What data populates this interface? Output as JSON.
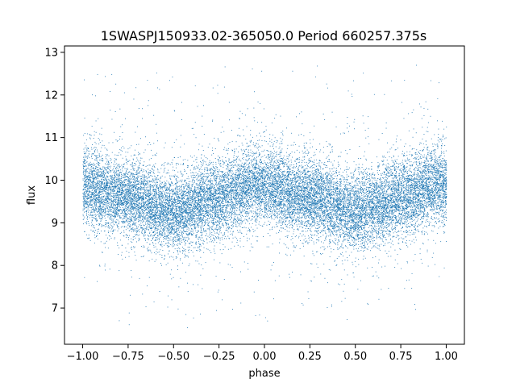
{
  "chart_data": {
    "type": "scatter",
    "title": "1SWASPJ150933.02-365050.0 Period 660257.375s",
    "xlabel": "phase",
    "ylabel": "flux",
    "xlim": [
      -1.1,
      1.1
    ],
    "ylim": [
      6.15,
      13.15
    ],
    "xticks": [
      -1.0,
      -0.75,
      -0.5,
      -0.25,
      0.0,
      0.25,
      0.5,
      0.75,
      1.0
    ],
    "xtick_labels": [
      "−1.00",
      "−0.75",
      "−0.50",
      "−0.25",
      "0.00",
      "0.25",
      "0.50",
      "0.75",
      "1.00"
    ],
    "yticks": [
      7,
      8,
      9,
      10,
      11,
      12,
      13
    ],
    "ytick_labels": [
      "7",
      "8",
      "9",
      "10",
      "11",
      "12",
      "13"
    ],
    "grid": false,
    "point_color": "#1f77b4",
    "series": [
      {
        "x_range": [
          -1.0,
          1.0
        ],
        "baseline_profile": [
          {
            "x": -1.0,
            "y": 9.85
          },
          {
            "x": -0.75,
            "y": 9.6
          },
          {
            "x": -0.5,
            "y": 9.25
          },
          {
            "x": -0.25,
            "y": 9.6
          },
          {
            "x": -0.05,
            "y": 9.9
          },
          {
            "x": 0.0,
            "y": 9.85
          },
          {
            "x": 0.25,
            "y": 9.6
          },
          {
            "x": 0.5,
            "y": 9.25
          },
          {
            "x": 0.75,
            "y": 9.6
          },
          {
            "x": 0.95,
            "y": 9.9
          },
          {
            "x": 1.0,
            "y": 9.85
          }
        ],
        "scatter_sd": 0.45,
        "y_min": 6.5,
        "y_max": 12.8,
        "point_count": 20000
      }
    ]
  }
}
